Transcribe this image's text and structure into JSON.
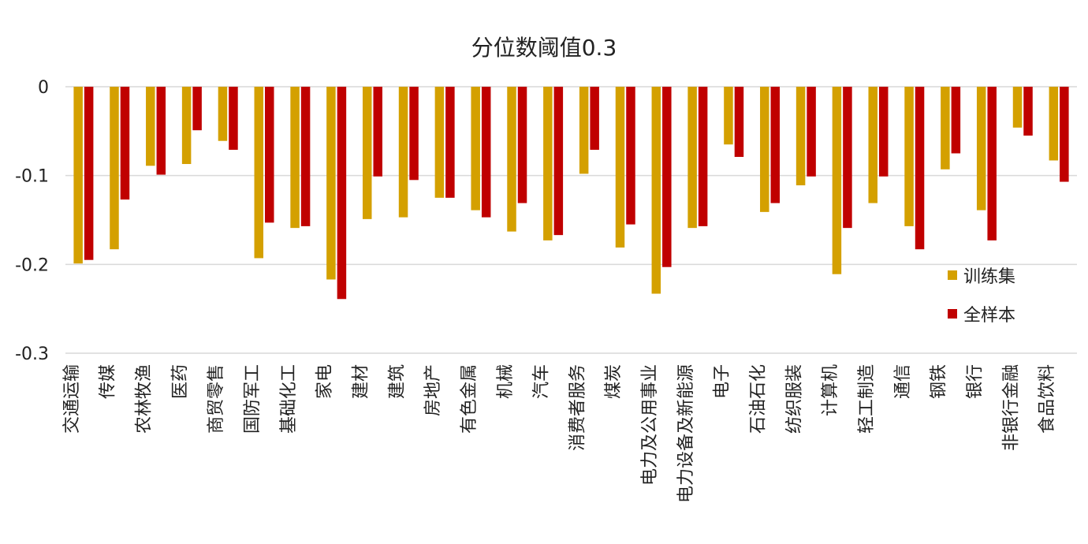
{
  "chart_data": {
    "type": "bar",
    "title": "分位数阈值0.3",
    "xlabel": "",
    "ylabel": "",
    "ylim": [
      -0.3,
      0
    ],
    "yticks": [
      0,
      -0.1,
      -0.2,
      -0.3
    ],
    "ytick_labels": [
      "0",
      "-0.1",
      "-0.2",
      "-0.3"
    ],
    "grid": true,
    "legend_placement": "right",
    "categories": [
      "交通运输",
      "传媒",
      "农林牧渔",
      "医药",
      "商贸零售",
      "国防军工",
      "基础化工",
      "家电",
      "建材",
      "建筑",
      "房地产",
      "有色金属",
      "机械",
      "汽车",
      "消费者服务",
      "煤炭",
      "电力及公用事业",
      "电力设备及新能源",
      "电子",
      "石油石化",
      "纺织服装",
      "计算机",
      "轻工制造",
      "通信",
      "钢铁",
      "银行",
      "非银行金融",
      "食品饮料"
    ],
    "series": [
      {
        "name": "训练集",
        "color": "#d4a000",
        "values": [
          -0.199,
          -0.183,
          -0.089,
          -0.087,
          -0.061,
          -0.193,
          -0.159,
          -0.217,
          -0.149,
          -0.147,
          -0.125,
          -0.139,
          -0.163,
          -0.173,
          -0.098,
          -0.181,
          -0.233,
          -0.159,
          -0.065,
          -0.141,
          -0.111,
          -0.211,
          -0.131,
          -0.157,
          -0.093,
          -0.139,
          -0.046,
          -0.083
        ]
      },
      {
        "name": "全样本",
        "color": "#c00000",
        "values": [
          -0.195,
          -0.127,
          -0.099,
          -0.049,
          -0.071,
          -0.153,
          -0.157,
          -0.239,
          -0.101,
          -0.105,
          -0.125,
          -0.147,
          -0.131,
          -0.167,
          -0.071,
          -0.155,
          -0.203,
          -0.157,
          -0.079,
          -0.131,
          -0.101,
          -0.159,
          -0.101,
          -0.183,
          -0.075,
          -0.173,
          -0.055,
          -0.107
        ]
      }
    ]
  }
}
